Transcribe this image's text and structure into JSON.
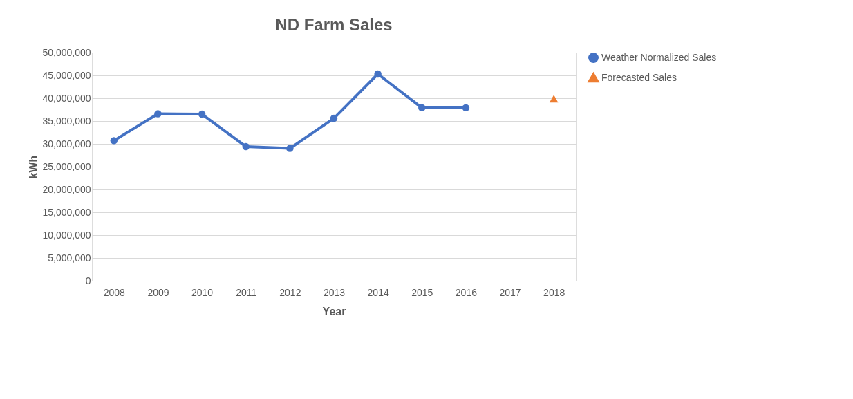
{
  "chart_data": {
    "type": "line",
    "title": "ND Farm Sales",
    "xlabel": "Year",
    "ylabel": "kWh",
    "categories": [
      "2008",
      "2009",
      "2010",
      "2011",
      "2012",
      "2013",
      "2014",
      "2015",
      "2016",
      "2017",
      "2018"
    ],
    "series": [
      {
        "name": "Weather Normalized Sales",
        "marker": "circle",
        "color": "#4472c4",
        "values": [
          30700000,
          36600000,
          36500000,
          29400000,
          29000000,
          35600000,
          45300000,
          37900000,
          37900000,
          null,
          null
        ]
      },
      {
        "name": "Forecasted Sales",
        "type": "scatter",
        "marker": "triangle",
        "color": "#ed7d31",
        "values": [
          null,
          null,
          null,
          null,
          null,
          null,
          null,
          null,
          null,
          null,
          39900000
        ]
      }
    ],
    "ylim": [
      0,
      50000000
    ],
    "yticks": [
      0,
      {
        "value": 5000000,
        "label": "5,000,000"
      },
      {
        "value": 10000000,
        "label": "10,000,000"
      },
      {
        "value": 15000000,
        "label": "15,000,000"
      },
      {
        "value": 20000000,
        "label": "20,000,000"
      },
      {
        "value": 25000000,
        "label": "25,000,000"
      },
      {
        "value": 30000000,
        "label": "30,000,000"
      },
      {
        "value": 35000000,
        "label": "35,000,000"
      },
      {
        "value": 40000000,
        "label": "40,000,000"
      },
      {
        "value": 45000000,
        "label": "45,000,000"
      },
      {
        "value": 50000000,
        "label": "50,000,000"
      }
    ],
    "grid": "y",
    "legend": "right"
  }
}
